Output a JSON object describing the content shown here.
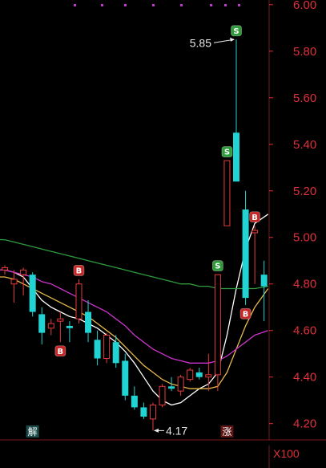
{
  "chart_data": {
    "type": "candlestick",
    "y_axis": {
      "ticks": [
        "6.00",
        "5.80",
        "5.60",
        "5.40",
        "5.20",
        "5.00",
        "4.80",
        "4.60",
        "4.40",
        "4.20"
      ],
      "ylim": [
        4.13,
        6.02
      ],
      "position": "right"
    },
    "candles": [
      {
        "o": 4.86,
        "h": 4.88,
        "l": 4.84,
        "c": 4.87
      },
      {
        "o": 4.8,
        "h": 4.86,
        "l": 4.72,
        "c": 4.82
      },
      {
        "o": 4.84,
        "h": 4.87,
        "l": 4.75,
        "c": 4.86
      },
      {
        "o": 4.84,
        "h": 4.85,
        "l": 4.66,
        "c": 4.68
      },
      {
        "o": 4.67,
        "h": 4.7,
        "l": 4.54,
        "c": 4.59
      },
      {
        "o": 4.61,
        "h": 4.65,
        "l": 4.58,
        "c": 4.63
      },
      {
        "o": 4.64,
        "h": 4.68,
        "l": 4.55,
        "c": 4.65
      },
      {
        "o": 4.62,
        "h": 4.64,
        "l": 4.55,
        "c": 4.61
      },
      {
        "o": 4.65,
        "h": 4.82,
        "l": 4.63,
        "c": 4.8
      },
      {
        "o": 4.68,
        "h": 4.73,
        "l": 4.55,
        "c": 4.59
      },
      {
        "o": 4.56,
        "h": 4.6,
        "l": 4.45,
        "c": 4.48
      },
      {
        "o": 4.48,
        "h": 4.59,
        "l": 4.46,
        "c": 4.58
      },
      {
        "o": 4.55,
        "h": 4.58,
        "l": 4.44,
        "c": 4.46
      },
      {
        "o": 4.47,
        "h": 4.5,
        "l": 4.3,
        "c": 4.32
      },
      {
        "o": 4.32,
        "h": 4.36,
        "l": 4.26,
        "c": 4.27
      },
      {
        "o": 4.27,
        "h": 4.29,
        "l": 4.22,
        "c": 4.23
      },
      {
        "o": 4.22,
        "h": 4.29,
        "l": 4.17,
        "c": 4.28
      },
      {
        "o": 4.28,
        "h": 4.37,
        "l": 4.27,
        "c": 4.36
      },
      {
        "o": 4.36,
        "h": 4.4,
        "l": 4.34,
        "c": 4.35
      },
      {
        "o": 4.34,
        "h": 4.41,
        "l": 4.32,
        "c": 4.4
      },
      {
        "o": 4.39,
        "h": 4.44,
        "l": 4.38,
        "c": 4.43
      },
      {
        "o": 4.42,
        "h": 4.44,
        "l": 4.39,
        "c": 4.4
      },
      {
        "o": 4.4,
        "h": 4.5,
        "l": 4.34,
        "c": 4.41
      },
      {
        "o": 4.41,
        "h": 4.84,
        "l": 4.34,
        "c": 4.84
      },
      {
        "o": 5.05,
        "h": 5.33,
        "l": 5.05,
        "c": 5.33
      },
      {
        "o": 5.45,
        "h": 5.85,
        "l": 5.24,
        "c": 5.24
      },
      {
        "o": 5.12,
        "h": 5.2,
        "l": 4.71,
        "c": 4.74
      },
      {
        "o": 5.02,
        "h": 5.05,
        "l": 4.8,
        "c": 5.03
      },
      {
        "o": 4.84,
        "h": 4.9,
        "l": 4.64,
        "c": 4.79
      }
    ],
    "moving_averages": [
      {
        "color": "#ffffff",
        "values": [
          4.86,
          4.85,
          4.83,
          4.78,
          4.73,
          4.7,
          4.68,
          4.66,
          4.65,
          4.63,
          4.61,
          4.58,
          4.55,
          4.51,
          4.46,
          4.4,
          4.34,
          4.3,
          4.28,
          4.29,
          4.32,
          4.35,
          4.37,
          4.42,
          4.58,
          4.78,
          4.95,
          5.06,
          5.1
        ]
      },
      {
        "color": "#e8b84a",
        "values": [
          4.83,
          4.82,
          4.8,
          4.78,
          4.76,
          4.74,
          4.72,
          4.7,
          4.68,
          4.66,
          4.63,
          4.6,
          4.57,
          4.53,
          4.49,
          4.45,
          4.42,
          4.39,
          4.37,
          4.36,
          4.35,
          4.35,
          4.35,
          4.36,
          4.42,
          4.52,
          4.62,
          4.7,
          4.78
        ]
      },
      {
        "color": "#cc33cc",
        "values": [
          4.86,
          4.85,
          4.84,
          4.83,
          4.81,
          4.8,
          4.78,
          4.76,
          4.74,
          4.72,
          4.7,
          4.68,
          4.65,
          4.62,
          4.58,
          4.55,
          4.52,
          4.5,
          4.48,
          4.47,
          4.46,
          4.46,
          4.46,
          4.47,
          4.49,
          4.52,
          4.55,
          4.58,
          4.6
        ]
      },
      {
        "color": "#2f9a3e",
        "values": [
          4.99,
          4.98,
          4.97,
          4.96,
          4.95,
          4.94,
          4.93,
          4.92,
          4.91,
          4.9,
          4.89,
          4.88,
          4.87,
          4.86,
          4.85,
          4.84,
          4.83,
          4.82,
          4.81,
          4.8,
          4.8,
          4.79,
          4.79,
          4.78,
          4.78,
          4.78,
          4.78,
          4.78,
          4.79
        ]
      }
    ],
    "signals": [
      {
        "index": 8,
        "label": "B",
        "at": "above"
      },
      {
        "index": 6,
        "label": "B",
        "at": "below"
      },
      {
        "index": 23,
        "label": "S",
        "at": "above"
      },
      {
        "index": 24,
        "label": "S",
        "at": "above"
      },
      {
        "index": 25,
        "label": "S",
        "at": "above"
      },
      {
        "index": 27,
        "label": "B",
        "at": "above"
      },
      {
        "index": 26,
        "label": "B",
        "at": "below"
      }
    ],
    "annotations": [
      {
        "text": "5.85",
        "index": 25,
        "value": 5.85,
        "side": "left"
      },
      {
        "text": "4.17",
        "index": 16,
        "value": 4.17,
        "side": "right"
      }
    ],
    "events": [
      {
        "text": "解",
        "index": 3
      },
      {
        "text": "涨",
        "index": 24
      }
    ]
  },
  "volume_scale": "X100",
  "colors": {
    "up": "#e63b3b",
    "down": "#22d3d3",
    "axis_text": "#e0303a",
    "buy_badge": "#c62828",
    "sell_badge": "#2e9c3a",
    "event_bg": "#1a4a4a",
    "event_bg_up": "#5a1414"
  }
}
